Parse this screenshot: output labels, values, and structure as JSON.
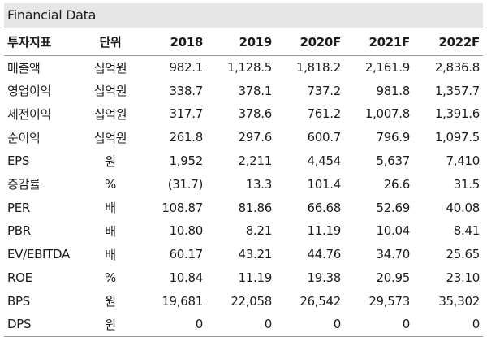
{
  "title": "Financial Data",
  "table": {
    "headers": [
      "투자지표",
      "단위",
      "2018",
      "2019",
      "2020F",
      "2021F",
      "2022F"
    ],
    "rows": [
      {
        "label": "매출액",
        "unit": "십억원",
        "values": [
          "982.1",
          "1,128.5",
          "1,818.2",
          "2,161.9",
          "2,836.8"
        ]
      },
      {
        "label": "영업이익",
        "unit": "십억원",
        "values": [
          "338.7",
          "378.1",
          "737.2",
          "981.8",
          "1,357.7"
        ]
      },
      {
        "label": "세전이익",
        "unit": "십억원",
        "values": [
          "317.7",
          "378.6",
          "761.2",
          "1,007.8",
          "1,391.6"
        ]
      },
      {
        "label": "순이익",
        "unit": "십억원",
        "values": [
          "261.8",
          "297.6",
          "600.7",
          "796.9",
          "1,097.5"
        ]
      },
      {
        "label": "EPS",
        "unit": "원",
        "values": [
          "1,952",
          "2,211",
          "4,454",
          "5,637",
          "7,410"
        ]
      },
      {
        "label": "증감률",
        "unit": "%",
        "values": [
          "(31.7)",
          "13.3",
          "101.4",
          "26.6",
          "31.5"
        ]
      },
      {
        "label": "PER",
        "unit": "배",
        "values": [
          "108.87",
          "81.86",
          "66.68",
          "52.69",
          "40.08"
        ]
      },
      {
        "label": "PBR",
        "unit": "배",
        "values": [
          "10.80",
          "8.21",
          "11.19",
          "10.04",
          "8.41"
        ]
      },
      {
        "label": "EV/EBITDA",
        "unit": "배",
        "values": [
          "60.17",
          "43.21",
          "44.76",
          "34.70",
          "25.65"
        ]
      },
      {
        "label": "ROE",
        "unit": "%",
        "values": [
          "10.84",
          "11.19",
          "19.38",
          "20.95",
          "23.10"
        ]
      },
      {
        "label": "BPS",
        "unit": "원",
        "values": [
          "19,681",
          "22,058",
          "26,542",
          "29,573",
          "35,302"
        ]
      },
      {
        "label": "DPS",
        "unit": "원",
        "values": [
          "0",
          "0",
          "0",
          "0",
          "0"
        ]
      }
    ]
  }
}
